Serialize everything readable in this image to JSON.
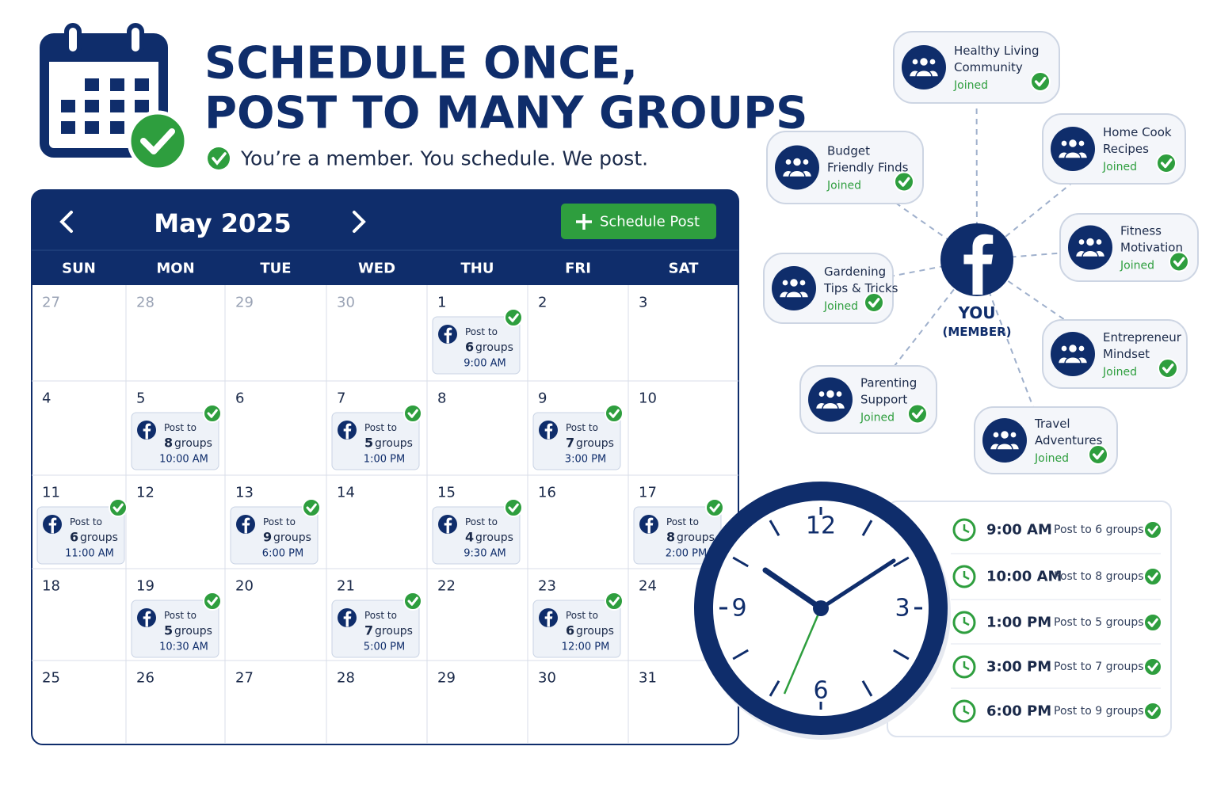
{
  "header": {
    "title_lines": [
      "SCHEDULE ONCE,",
      "POST TO MANY GROUPS"
    ],
    "tagline": "You’re a member. You schedule. We post."
  },
  "calendar": {
    "month": "May 2025",
    "button": "Schedule Post",
    "weekdays": [
      "SUN",
      "MON",
      "TUE",
      "WED",
      "THU",
      "FRI",
      "SAT"
    ],
    "weeks": [
      [
        {
          "day": 27,
          "other_month": true
        },
        {
          "day": 28,
          "other_month": true
        },
        {
          "day": 29,
          "other_month": true
        },
        {
          "day": 30,
          "other_month": true
        },
        {
          "day": 1,
          "post": {
            "label": "Post to",
            "count": 6,
            "unit": "groups",
            "time": "9:00 AM"
          }
        },
        {
          "day": 2
        },
        {
          "day": 3
        }
      ],
      [
        {
          "day": 4
        },
        {
          "day": 5,
          "post": {
            "label": "Post to",
            "count": 8,
            "unit": "groups",
            "time": "10:00 AM"
          }
        },
        {
          "day": 6
        },
        {
          "day": 7,
          "post": {
            "label": "Post to",
            "count": 5,
            "unit": "groups",
            "time": "1:00 PM"
          }
        },
        {
          "day": 8
        },
        {
          "day": 9,
          "post": {
            "label": "Post to",
            "count": 7,
            "unit": "groups",
            "time": "3:00 PM"
          }
        },
        {
          "day": 10
        }
      ],
      [
        {
          "day": 11,
          "post": {
            "label": "Post to",
            "count": 6,
            "unit": "groups",
            "time": "11:00 AM"
          }
        },
        {
          "day": 12
        },
        {
          "day": 13,
          "post": {
            "label": "Post to",
            "count": 9,
            "unit": "groups",
            "time": "6:00 PM"
          }
        },
        {
          "day": 14
        },
        {
          "day": 15,
          "post": {
            "label": "Post to",
            "count": 4,
            "unit": "groups",
            "time": "9:30 AM"
          }
        },
        {
          "day": 16
        },
        {
          "day": 17,
          "post": {
            "label": "Post to",
            "count": 8,
            "unit": "groups",
            "time": "2:00 PM"
          }
        }
      ],
      [
        {
          "day": 18
        },
        {
          "day": 19,
          "post": {
            "label": "Post to",
            "count": 5,
            "unit": "groups",
            "time": "10:30 AM"
          }
        },
        {
          "day": 20
        },
        {
          "day": 21,
          "post": {
            "label": "Post to",
            "count": 7,
            "unit": "groups",
            "time": "5:00 PM"
          }
        },
        {
          "day": 22
        },
        {
          "day": 23,
          "post": {
            "label": "Post to",
            "count": 6,
            "unit": "groups",
            "time": "12:00 PM"
          }
        },
        {
          "day": 24
        }
      ],
      [
        {
          "day": 25
        },
        {
          "day": 26
        },
        {
          "day": 27
        },
        {
          "day": 28
        },
        {
          "day": 29
        },
        {
          "day": 30
        },
        {
          "day": 31
        }
      ]
    ]
  },
  "network": {
    "center": [
      "YOU",
      "(MEMBER)"
    ],
    "groups": [
      {
        "name": [
          "Healthy Living",
          "Community"
        ],
        "status": "Joined"
      },
      {
        "name": [
          "Home Cook",
          "Recipes"
        ],
        "status": "Joined"
      },
      {
        "name": [
          "Fitness",
          "Motivation"
        ],
        "status": "Joined"
      },
      {
        "name": [
          "Entrepreneur",
          "Mindset"
        ],
        "status": "Joined"
      },
      {
        "name": [
          "Travel",
          "Adventures"
        ],
        "status": "Joined"
      },
      {
        "name": [
          "Parenting",
          "Support"
        ],
        "status": "Joined"
      },
      {
        "name": [
          "Gardening",
          "Tips & Tricks"
        ],
        "status": "Joined"
      },
      {
        "name": [
          "Budget",
          "Friendly Finds"
        ],
        "status": "Joined"
      }
    ]
  },
  "clock": {
    "numerals": [
      12,
      3,
      6,
      9
    ]
  },
  "schedule": [
    {
      "time": "9:00 AM",
      "text": "Post to 6 groups"
    },
    {
      "time": "10:00 AM",
      "text": "Post to 8 groups"
    },
    {
      "time": "1:00 PM",
      "text": "Post to 5 groups"
    },
    {
      "time": "3:00 PM",
      "text": "Post to 7 groups"
    },
    {
      "time": "6:00 PM",
      "text": "Post to 9 groups"
    }
  ]
}
